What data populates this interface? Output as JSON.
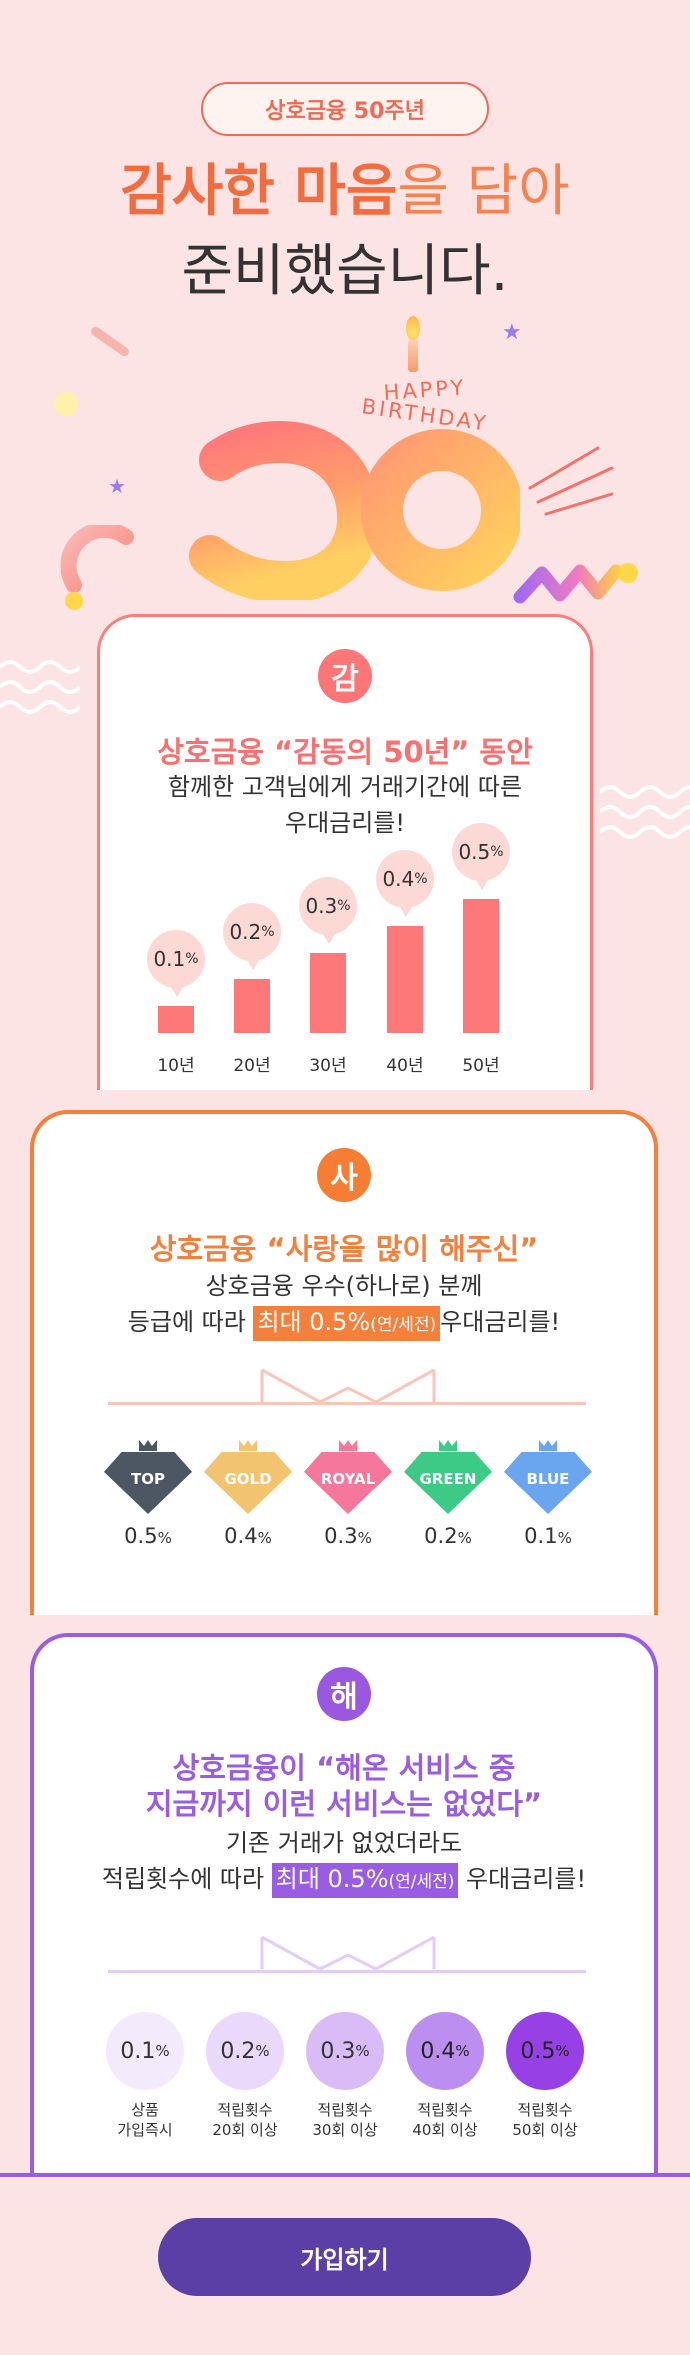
{
  "hero": {
    "pill": "상호금융 50주년",
    "headline_bold": "감사한 마음",
    "headline_rest": "을 담아",
    "headline_line2": "준비했습니다.",
    "happy": "HAPPY",
    "birthday": "BIRTHDAY",
    "big_number": "50"
  },
  "card1": {
    "badge": "감",
    "title": "상호금융 “감동의 50년” 동안",
    "body_line1": "함께한 고객님에게 거래기간에 따른",
    "body_line2": "우대금리를!",
    "colors": {
      "border": "#ff7c7c",
      "bar": "#fd7879",
      "bubble": "#fdd9d6"
    }
  },
  "chart_data": {
    "type": "bar",
    "categories": [
      "10년",
      "20년",
      "30년",
      "40년",
      "50년"
    ],
    "values": [
      0.1,
      0.2,
      0.3,
      0.4,
      0.5
    ],
    "value_labels": [
      "0.1",
      "0.2",
      "0.3",
      "0.4",
      "0.5"
    ],
    "unit": "%",
    "ylim": [
      0,
      0.5
    ],
    "grid": false
  },
  "card2": {
    "badge": "사",
    "title": "상호금융 “사랑을 많이 해주신”",
    "body_line1": "상호금융 우수(하나로) 분께",
    "body_line2_pre": "등급에 따라 ",
    "highlight_main": "최대 0.5%",
    "highlight_sub": "(연/세전)",
    "body_line2_post": "우대금리를!",
    "unit": "%",
    "grades": [
      {
        "name": "TOP",
        "rate": "0.5",
        "color": "#4d5663"
      },
      {
        "name": "GOLD",
        "rate": "0.4",
        "color": "#f2c46f"
      },
      {
        "name": "ROYAL",
        "rate": "0.3",
        "color": "#f5779b"
      },
      {
        "name": "GREEN",
        "rate": "0.2",
        "color": "#3dca87"
      },
      {
        "name": "BLUE",
        "rate": "0.1",
        "color": "#6aa6f0"
      }
    ],
    "colors": {
      "border": "#f5803c",
      "highlight": "#f5803c"
    }
  },
  "card3": {
    "badge": "해",
    "title_line1": "상호금융이 “해온 서비스 중",
    "title_line2": "지금까지 이런 서비스는 없었다”",
    "body_line1": "기존 거래가 없었더라도",
    "body_line2_pre": "적립횟수에 따라 ",
    "highlight_main": "최대 0.5%",
    "highlight_sub": "(연/세전)",
    "body_line2_post": " 우대금리를!",
    "unit": "%",
    "tiers": [
      {
        "rate": "0.1",
        "label1": "상품",
        "label2": "가입즉시",
        "bg": "#f3ebfc",
        "fg": "#333333"
      },
      {
        "rate": "0.2",
        "label1": "적립횟수",
        "label2": "20회 이상",
        "bg": "#ead9fa",
        "fg": "#333333"
      },
      {
        "rate": "0.3",
        "label1": "적립횟수",
        "label2": "30회 이상",
        "bg": "#d9bcf5",
        "fg": "#333333"
      },
      {
        "rate": "0.4",
        "label1": "적립횟수",
        "label2": "40회 이상",
        "bg": "#bb8ef0",
        "fg": "#222222"
      },
      {
        "rate": "0.5",
        "label1": "적립횟수",
        "label2": "50회 이상",
        "bg": "#9640e6",
        "fg": "#222222"
      }
    ],
    "colors": {
      "border": "#9a5ce2",
      "highlight": "#9a5ce2"
    }
  },
  "cta": {
    "join_label": "가입하기"
  }
}
